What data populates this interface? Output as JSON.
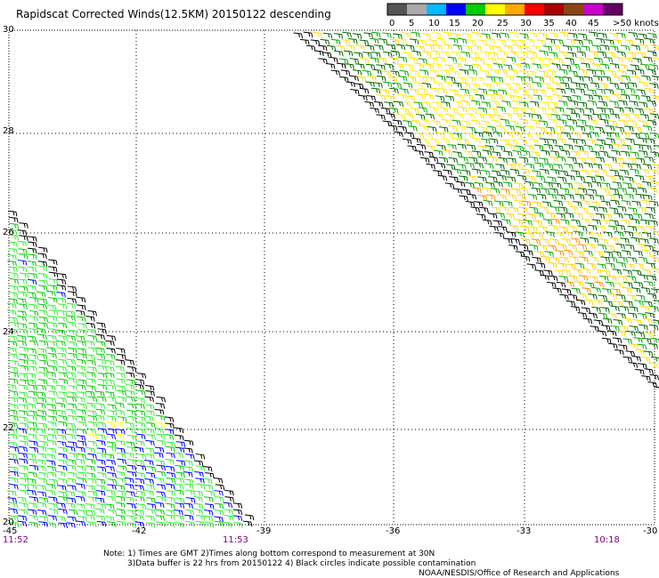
{
  "title": "Rapidscat Corrected Winds(12.5KM) 20150122 descending",
  "legend": {
    "labels": [
      "0",
      "5",
      "10",
      "15",
      "20",
      "25",
      "30",
      "35",
      "40",
      "45",
      ">50 knots"
    ],
    "colors": [
      "#555555",
      "#aaaaaa",
      "#00bbff",
      "#0000ff",
      "#00cc00",
      "#ffff00",
      "#ffaa00",
      "#ff0000",
      "#aa0000",
      "#8b4513",
      "#cc00cc",
      "#660066"
    ]
  },
  "axes": {
    "lat_ticks": [
      "30",
      "28",
      "26",
      "24",
      "22",
      "20"
    ],
    "lon_ticks": [
      "-45",
      "-42",
      "-39",
      "-36",
      "-33",
      "-30"
    ]
  },
  "times": {
    "left": "11:52",
    "middle": "11:53",
    "right": "10:18"
  },
  "notes": {
    "line1": "Note: 1) Times are GMT 2)Times along bottom correspond to measurement at 30N",
    "line2": "3)Data buffer is 22 hrs from 20150122 4) Black circles indicate possible contamination",
    "line3": "NOAA/NESDIS/Office of Research and Applications"
  },
  "swaths": {
    "west": {
      "dominant": "green",
      "secondary": [
        "blue",
        "yellow"
      ]
    },
    "east": {
      "dominant": "green",
      "secondary": [
        "yellow",
        "orange"
      ]
    }
  }
}
